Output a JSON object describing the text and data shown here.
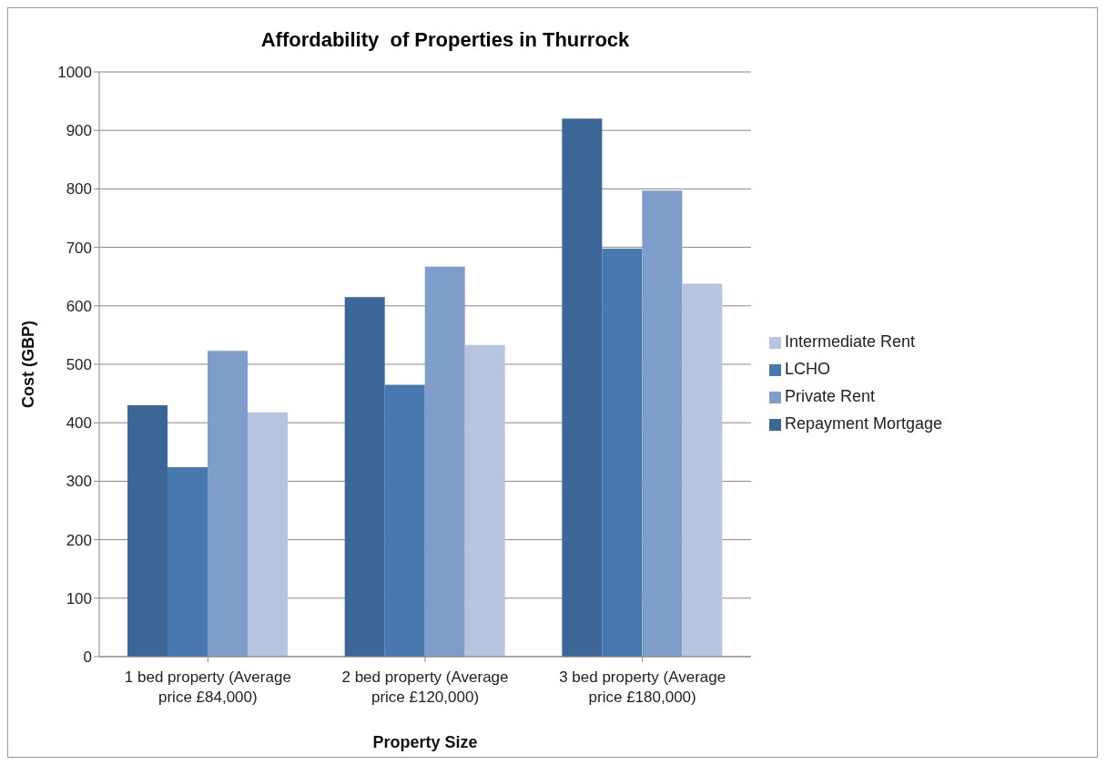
{
  "chart_data": {
    "type": "bar",
    "title": "Affordability  of Properties in Thurrock",
    "xlabel": "Property Size",
    "ylabel": "Cost (GBP)",
    "categories": [
      "1 bed property (Average price £84,000)",
      "2 bed property (Average price £120,000)",
      "3 bed property (Average price £180,000)"
    ],
    "series": [
      {
        "name": "Repayment Mortgage",
        "color": "#3d6698",
        "values": [
          430,
          615,
          920
        ]
      },
      {
        "name": "LCHO",
        "color": "#4878b0",
        "values": [
          324,
          465,
          698
        ]
      },
      {
        "name": "Private Rent",
        "color": "#7f9dca",
        "values": [
          523,
          667,
          797
        ]
      },
      {
        "name": "Intermediate Rent",
        "color": "#b7c4df",
        "values": [
          418,
          533,
          638
        ]
      }
    ],
    "ylim": [
      0,
      1000
    ],
    "yticks": [
      0,
      100,
      200,
      300,
      400,
      500,
      600,
      700,
      800,
      900,
      1000
    ],
    "grid": "y",
    "legend": "right"
  }
}
